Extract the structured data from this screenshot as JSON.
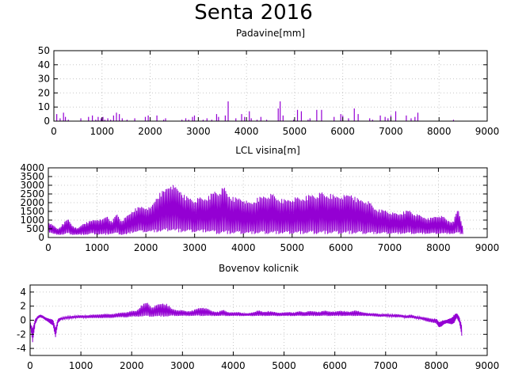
{
  "title": "Senta 2016",
  "chart_data": [
    {
      "id": "precip",
      "type": "bar",
      "title": "Padavine[mm]",
      "xlabel": "",
      "ylabel": "",
      "xlim": [
        0,
        9000
      ],
      "ylim": [
        0,
        50
      ],
      "xticks": [
        0,
        1000,
        2000,
        3000,
        4000,
        5000,
        6000,
        7000,
        8000,
        9000
      ],
      "yticks": [
        0,
        10,
        20,
        30,
        40,
        50
      ],
      "grid": true,
      "color": "#9400d3",
      "x": [
        60,
        130,
        200,
        240,
        300,
        560,
        720,
        800,
        870,
        920,
        980,
        1020,
        1060,
        1120,
        1180,
        1240,
        1300,
        1360,
        1420,
        1520,
        1680,
        1900,
        1960,
        2140,
        2280,
        2320,
        2660,
        2740,
        2800,
        2880,
        2920,
        3100,
        3180,
        3280,
        3380,
        3420,
        3560,
        3620,
        3780,
        3900,
        3960,
        4060,
        4100,
        4220,
        4300,
        4420,
        4660,
        4700,
        4760,
        4980,
        5060,
        5140,
        5280,
        5320,
        5460,
        5560,
        5820,
        5960,
        6000,
        6120,
        6240,
        6320,
        6560,
        6620,
        6780,
        6880,
        6940,
        7000,
        7100,
        7320,
        7420,
        7500,
        7560,
        8300
      ],
      "values": [
        5,
        2,
        6,
        3,
        1,
        2,
        3,
        4,
        1,
        3,
        2,
        3,
        1,
        2,
        1,
        4,
        6,
        5,
        2,
        1,
        2,
        3,
        4,
        4,
        1,
        2,
        1,
        2,
        1,
        3,
        4,
        1,
        2,
        1,
        5,
        3,
        4,
        14,
        2,
        5,
        3,
        7,
        2,
        1,
        3,
        1,
        9,
        14,
        4,
        1,
        8,
        7,
        1,
        2,
        8,
        8,
        3,
        5,
        4,
        2,
        9,
        5,
        2,
        1,
        4,
        3,
        2,
        4,
        7,
        4,
        2,
        3,
        6,
        1
      ]
    },
    {
      "id": "lcl",
      "type": "line",
      "title": "LCL visina[m]",
      "xlabel": "",
      "ylabel": "",
      "xlim": [
        0,
        9000
      ],
      "ylim": [
        0,
        4000
      ],
      "xticks": [
        0,
        1000,
        2000,
        3000,
        4000,
        5000,
        6000,
        7000,
        8000,
        9000
      ],
      "yticks": [
        0,
        500,
        1000,
        1500,
        2000,
        2500,
        3000,
        3500,
        4000
      ],
      "grid": true,
      "color": "#9400d3",
      "x": [
        0,
        100,
        200,
        300,
        400,
        500,
        600,
        700,
        800,
        900,
        1000,
        1100,
        1200,
        1300,
        1400,
        1500,
        1600,
        1700,
        1800,
        1900,
        2000,
        2100,
        2200,
        2300,
        2400,
        2500,
        2600,
        2700,
        2800,
        2900,
        3000,
        3100,
        3200,
        3300,
        3400,
        3500,
        3600,
        3700,
        3800,
        3900,
        4000,
        4100,
        4200,
        4300,
        4400,
        4500,
        4600,
        4700,
        4800,
        4900,
        5000,
        5100,
        5200,
        5300,
        5400,
        5500,
        5600,
        5700,
        5800,
        5900,
        6000,
        6100,
        6200,
        6300,
        6400,
        6500,
        6600,
        6700,
        6800,
        6900,
        7000,
        7100,
        7200,
        7300,
        7400,
        7500,
        7600,
        7700,
        7800,
        7900,
        8000,
        8100,
        8200,
        8300,
        8400,
        8500
      ],
      "lower": [
        300,
        200,
        150,
        150,
        200,
        150,
        150,
        150,
        150,
        200,
        150,
        150,
        150,
        200,
        200,
        150,
        150,
        250,
        300,
        300,
        300,
        300,
        300,
        300,
        300,
        400,
        300,
        300,
        300,
        300,
        300,
        300,
        300,
        300,
        200,
        200,
        200,
        200,
        200,
        200,
        200,
        200,
        200,
        200,
        200,
        200,
        200,
        200,
        200,
        200,
        200,
        200,
        200,
        200,
        200,
        200,
        200,
        200,
        200,
        200,
        200,
        200,
        200,
        200,
        200,
        200,
        200,
        200,
        200,
        200,
        200,
        200,
        200,
        200,
        200,
        200,
        200,
        200,
        200,
        200,
        200,
        200,
        200,
        200,
        200,
        200
      ],
      "upper": [
        900,
        700,
        500,
        800,
        1100,
        700,
        500,
        800,
        900,
        1000,
        1100,
        1000,
        1300,
        900,
        1400,
        1000,
        1200,
        1500,
        1700,
        1800,
        1800,
        1700,
        2300,
        2600,
        2800,
        3200,
        2900,
        2800,
        2400,
        2300,
        2200,
        2300,
        2300,
        2400,
        2700,
        2700,
        2900,
        2500,
        2300,
        2300,
        2300,
        2000,
        2100,
        2300,
        2400,
        2500,
        2500,
        2300,
        2200,
        2200,
        2300,
        2300,
        2300,
        2400,
        2500,
        2500,
        2600,
        2500,
        2500,
        2400,
        2500,
        2400,
        2600,
        2300,
        2200,
        2200,
        2000,
        1700,
        1600,
        1600,
        1500,
        1400,
        1400,
        1500,
        1600,
        1400,
        1300,
        1200,
        1100,
        1200,
        1300,
        1200,
        1000,
        900,
        1700,
        600
      ]
    },
    {
      "id": "bowen",
      "type": "line",
      "title": "Bovenov kolicnik",
      "xlabel": "",
      "ylabel": "",
      "xlim": [
        0,
        9000
      ],
      "ylim": [
        -5,
        5
      ],
      "xticks": [
        0,
        1000,
        2000,
        3000,
        4000,
        5000,
        6000,
        7000,
        8000,
        9000
      ],
      "yticks": [
        -4,
        -2,
        0,
        2,
        4
      ],
      "grid": true,
      "color": "#9400d3",
      "x": [
        0,
        50,
        100,
        150,
        200,
        250,
        300,
        350,
        400,
        450,
        500,
        550,
        600,
        700,
        800,
        900,
        1000,
        1100,
        1200,
        1300,
        1400,
        1500,
        1600,
        1700,
        1800,
        1900,
        2000,
        2100,
        2200,
        2300,
        2400,
        2500,
        2600,
        2700,
        2800,
        2900,
        3000,
        3100,
        3200,
        3300,
        3400,
        3500,
        3600,
        3700,
        3800,
        3900,
        4000,
        4100,
        4200,
        4300,
        4400,
        4500,
        4600,
        4700,
        4800,
        4900,
        5000,
        5100,
        5200,
        5300,
        5400,
        5500,
        5600,
        5700,
        5800,
        5900,
        6000,
        6100,
        6200,
        6300,
        6400,
        6500,
        6600,
        6700,
        6800,
        6900,
        7000,
        7100,
        7200,
        7300,
        7400,
        7500,
        7600,
        7700,
        7800,
        7900,
        8000,
        8050,
        8100,
        8150,
        8200,
        8250,
        8300,
        8350,
        8400,
        8450,
        8500
      ],
      "lower": [
        -0.5,
        -3.2,
        -0.6,
        0.2,
        0.4,
        0.3,
        0.0,
        -0.2,
        -0.5,
        -0.8,
        -2.4,
        -0.4,
        0.0,
        0.2,
        0.2,
        0.3,
        0.3,
        0.3,
        0.3,
        0.3,
        0.3,
        0.3,
        0.3,
        0.4,
        0.4,
        0.4,
        0.5,
        0.5,
        0.5,
        0.5,
        0.5,
        0.5,
        0.5,
        0.5,
        0.6,
        0.6,
        0.6,
        0.6,
        0.6,
        0.6,
        0.6,
        0.6,
        0.6,
        0.6,
        0.6,
        0.6,
        0.6,
        0.6,
        0.6,
        0.6,
        0.6,
        0.6,
        0.6,
        0.6,
        0.6,
        0.6,
        0.6,
        0.6,
        0.6,
        0.6,
        0.6,
        0.6,
        0.6,
        0.6,
        0.6,
        0.6,
        0.6,
        0.6,
        0.6,
        0.6,
        0.6,
        0.6,
        0.6,
        0.6,
        0.5,
        0.5,
        0.5,
        0.5,
        0.4,
        0.4,
        0.3,
        0.3,
        0.2,
        0.1,
        -0.2,
        -0.3,
        -0.5,
        -1.0,
        -0.9,
        -0.6,
        -0.4,
        -0.5,
        -0.6,
        -0.4,
        0.3,
        -0.3,
        -2.2
      ],
      "upper": [
        -0.2,
        -1.2,
        0.2,
        0.6,
        0.8,
        0.7,
        0.4,
        0.3,
        0.2,
        0.1,
        -1.0,
        0.2,
        0.4,
        0.5,
        0.6,
        0.7,
        0.7,
        0.7,
        0.8,
        0.8,
        0.9,
        0.9,
        0.9,
        1.0,
        1.1,
        1.2,
        1.3,
        1.4,
        2.2,
        2.6,
        1.9,
        2.2,
        2.5,
        2.3,
        1.6,
        1.5,
        1.4,
        1.3,
        1.4,
        1.7,
        1.9,
        1.6,
        1.3,
        1.2,
        1.5,
        1.2,
        1.1,
        1.2,
        1.0,
        1.0,
        1.2,
        1.4,
        1.2,
        1.3,
        1.2,
        1.1,
        1.1,
        1.2,
        1.1,
        1.3,
        1.2,
        1.3,
        1.3,
        1.2,
        1.4,
        1.3,
        1.2,
        1.4,
        1.3,
        1.2,
        1.5,
        1.2,
        1.1,
        1.0,
        1.0,
        0.9,
        0.9,
        0.8,
        0.9,
        0.8,
        0.7,
        0.8,
        0.6,
        0.5,
        0.4,
        0.3,
        0.2,
        -0.2,
        -0.1,
        0.0,
        0.1,
        0.2,
        0.4,
        0.8,
        1.0,
        0.6,
        -0.8
      ]
    }
  ]
}
